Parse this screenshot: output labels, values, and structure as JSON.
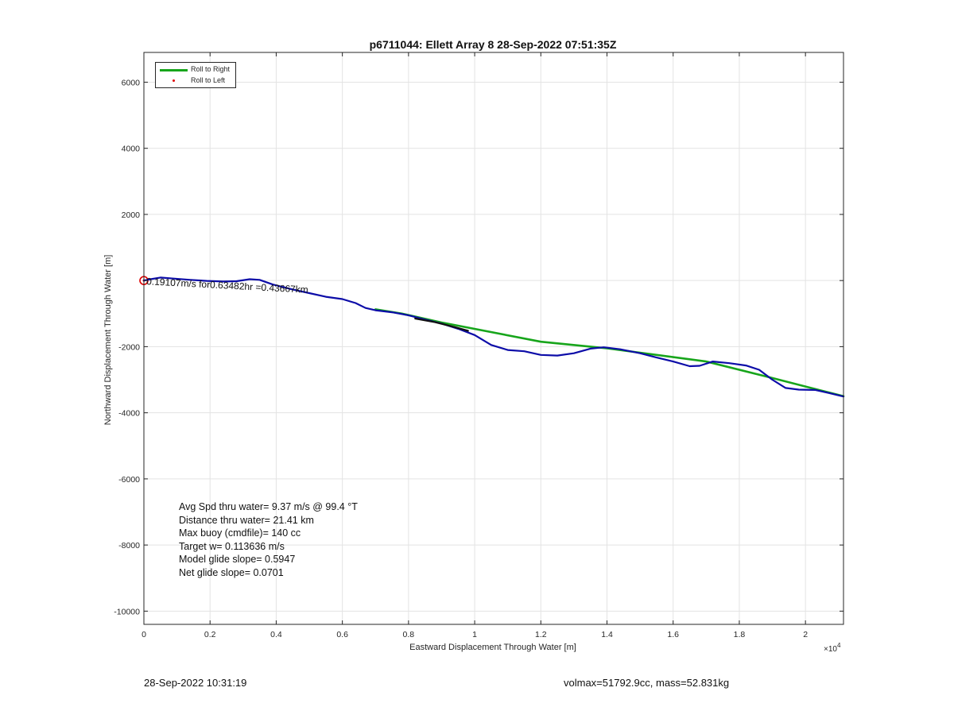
{
  "chart_data": {
    "type": "line",
    "title": "p6711044: Ellett Array 8 28-Sep-2022 07:51:35Z",
    "xlabel": "Eastward Displacement Through Water [m]",
    "ylabel": "Northward Displacement Through Water [m]",
    "x_exponent_label": "×10",
    "x_exponent": "4",
    "xlim": [
      0,
      21150
    ],
    "ylim": [
      -10400,
      6900
    ],
    "x_ticks": [
      0,
      2000,
      4000,
      6000,
      8000,
      10000,
      12000,
      14000,
      16000,
      18000,
      20000
    ],
    "x_tick_labels": [
      "0",
      "0.2",
      "0.4",
      "0.6",
      "0.8",
      "1",
      "1.2",
      "1.4",
      "1.6",
      "1.8",
      "2"
    ],
    "y_ticks": [
      -10000,
      -8000,
      -6000,
      -4000,
      -2000,
      0,
      2000,
      4000,
      6000
    ],
    "y_tick_labels": [
      "-10000",
      "-8000",
      "-6000",
      "-4000",
      "-2000",
      "",
      "2000",
      "4000",
      "6000"
    ],
    "grid": true,
    "legend_placement": "top-left",
    "series": [
      {
        "name": "Roll to Right",
        "color": "#17a51b",
        "style": "line",
        "points": [
          [
            7000,
            -870
          ],
          [
            7800,
            -1000
          ],
          [
            9000,
            -1270
          ],
          [
            12000,
            -1850
          ],
          [
            14000,
            -2050
          ],
          [
            17000,
            -2450
          ],
          [
            19000,
            -2950
          ],
          [
            21150,
            -3500
          ]
        ]
      },
      {
        "name": "Roll to Left",
        "color": "#e00000",
        "style": "dot",
        "points": [
          [
            0,
            0
          ]
        ]
      },
      {
        "name": "",
        "color": "#0c0ca8",
        "style": "line",
        "points": [
          [
            0,
            0
          ],
          [
            200,
            40
          ],
          [
            500,
            90
          ],
          [
            900,
            60
          ],
          [
            1400,
            20
          ],
          [
            1900,
            -10
          ],
          [
            2400,
            -30
          ],
          [
            2800,
            -20
          ],
          [
            3200,
            40
          ],
          [
            3500,
            20
          ],
          [
            3900,
            -120
          ],
          [
            4500,
            -270
          ],
          [
            5000,
            -380
          ],
          [
            5500,
            -490
          ],
          [
            6000,
            -560
          ],
          [
            6400,
            -680
          ],
          [
            6700,
            -830
          ],
          [
            7000,
            -900
          ],
          [
            7500,
            -960
          ],
          [
            8000,
            -1050
          ],
          [
            8500,
            -1180
          ],
          [
            9000,
            -1300
          ],
          [
            9500,
            -1460
          ],
          [
            10000,
            -1650
          ],
          [
            10500,
            -1950
          ],
          [
            11000,
            -2100
          ],
          [
            11500,
            -2140
          ],
          [
            12000,
            -2250
          ],
          [
            12500,
            -2270
          ],
          [
            13000,
            -2200
          ],
          [
            13500,
            -2060
          ],
          [
            13900,
            -2020
          ],
          [
            14400,
            -2080
          ],
          [
            15000,
            -2200
          ],
          [
            15500,
            -2330
          ],
          [
            16000,
            -2450
          ],
          [
            16500,
            -2590
          ],
          [
            16800,
            -2580
          ],
          [
            17200,
            -2450
          ],
          [
            17700,
            -2500
          ],
          [
            18200,
            -2570
          ],
          [
            18600,
            -2700
          ],
          [
            19000,
            -3000
          ],
          [
            19400,
            -3250
          ],
          [
            19800,
            -3300
          ],
          [
            20300,
            -3310
          ],
          [
            20700,
            -3400
          ],
          [
            21150,
            -3510
          ]
        ]
      },
      {
        "name": "",
        "color": "#111111",
        "style": "line",
        "points": [
          [
            8200,
            -1150
          ],
          [
            8800,
            -1260
          ],
          [
            9400,
            -1410
          ],
          [
            9800,
            -1520
          ]
        ]
      }
    ],
    "annotations": [
      {
        "text": "0.19107m/s for0.63482hr =0.43667km",
        "x": 0,
        "y": 0
      }
    ]
  },
  "legend": {
    "items": [
      {
        "label": "Roll to Right",
        "color": "#17a51b"
      },
      {
        "label": "Roll to Left",
        "color": "#e00000"
      }
    ]
  },
  "stats": {
    "avg_speed": "Avg Spd thru water=  9.37 m/s @  99.4 °T",
    "distance": "Distance thru water= 21.41 km",
    "max_buoy": "Max buoy (cmdfile)= 140 cc",
    "target_w": "Target w= 0.113636 m/s",
    "model_glide": "Model glide slope= 0.5947",
    "net_glide": "Net glide slope= 0.0701"
  },
  "footer": {
    "timestamp": "28-Sep-2022 10:31:19",
    "vol_mass": "volmax=51792.9cc, mass=52.831kg"
  }
}
